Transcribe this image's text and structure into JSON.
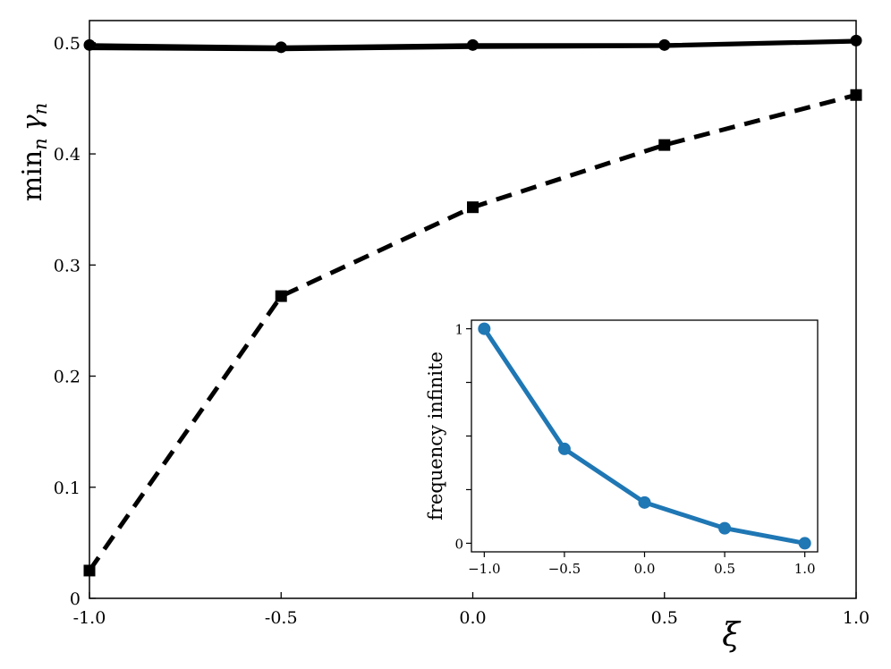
{
  "chart_data": [
    {
      "type": "line",
      "title": "",
      "xlabel": "ξ",
      "ylabel_main": "min",
      "ylabel_sub": "n",
      "ylabel_greek": "γ",
      "ylabel_greek_sub": "n",
      "xlim": [
        -1.0,
        1.0
      ],
      "ylim": [
        0,
        0.52
      ],
      "grid": false,
      "xticks": [
        -1.0,
        -0.5,
        0.0,
        0.5,
        1.0
      ],
      "xtick_labels": [
        "-1.0",
        "-0.5",
        "0.0",
        "0.5",
        "1.0"
      ],
      "yticks": [
        0,
        0.1,
        0.2,
        0.3,
        0.4,
        0.5
      ],
      "ytick_labels": [
        "0",
        "0.1",
        "0.2",
        "0.3",
        "0.4",
        "0.5"
      ],
      "series": [
        {
          "style": "solid",
          "marker": "circle",
          "color": "#000000",
          "x": [
            -1.0,
            -0.5,
            0.0,
            0.5,
            1.0
          ],
          "y": [
            0.498,
            0.496,
            0.498,
            0.498,
            0.502
          ]
        },
        {
          "style": "solid",
          "marker": "none",
          "color": "#000000",
          "x": [
            -1.0,
            -0.5,
            0.0,
            0.5,
            1.0
          ],
          "y": [
            0.495,
            0.494,
            0.496,
            0.497,
            0.501
          ]
        },
        {
          "style": "dashed",
          "marker": "square",
          "color": "#000000",
          "x": [
            -1.0,
            -0.5,
            0.0,
            0.5,
            1.0
          ],
          "y": [
            0.025,
            0.272,
            0.352,
            0.408,
            0.453
          ]
        }
      ]
    },
    {
      "type": "line",
      "title": "",
      "xlabel": "",
      "ylabel": "frequency infinite",
      "xlim": [
        -1.08,
        1.08
      ],
      "ylim": [
        -0.04,
        1.04
      ],
      "grid": false,
      "xticks": [
        -1.0,
        -0.5,
        0.0,
        0.5,
        1.0
      ],
      "xtick_labels": [
        "−1.0",
        "−0.5",
        "0.0",
        "0.5",
        "1.0"
      ],
      "yticks": [
        0,
        0.25,
        0.5,
        0.75,
        1
      ],
      "ytick_labels": [
        "0",
        "",
        "",
        "",
        "1"
      ],
      "series": [
        {
          "style": "solid",
          "marker": "circle",
          "color": "#1f77b4",
          "x": [
            -1.0,
            -0.5,
            0.0,
            0.5,
            1.0
          ],
          "y": [
            1.0,
            0.44,
            0.19,
            0.07,
            0.0
          ]
        }
      ]
    }
  ]
}
